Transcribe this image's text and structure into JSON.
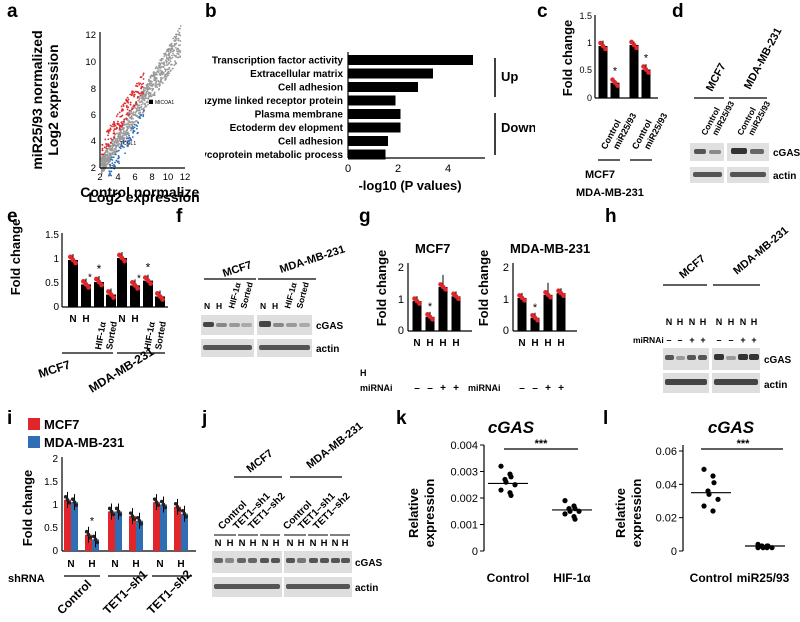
{
  "panel_labels": [
    "a",
    "b",
    "c",
    "d",
    "e",
    "f",
    "g",
    "h",
    "i",
    "j",
    "k",
    "l"
  ],
  "colors": {
    "bar": "#000000",
    "red_dot": "#e0262a",
    "blue": "#2f6db5",
    "gray_dot": "#9a9a9a",
    "blot_band": "#4a4a4a",
    "blot_bg": "#d6d6d6"
  },
  "a": {
    "ylabel_line1": "miR25/93 normalized",
    "ylabel_line2": "Log2 expression",
    "xlabel_line1": "Control normalized",
    "xlabel_line2": "Log2 expression",
    "xticks": [
      "2",
      "4",
      "6",
      "8",
      "10",
      "12"
    ],
    "yticks": [
      "2",
      "4",
      "6",
      "8",
      "10",
      "12"
    ],
    "annotation_1": "MICOA1",
    "annotation_2": "TCOL1"
  },
  "b": {
    "categories": [
      "Transcription factor activity",
      "Extracellular matrix",
      "Cell adhesion",
      "Enzyme linked receptor protein",
      "Plasma membrane",
      "Ectoderm dev elopment",
      "Cell adhesion",
      "Glycoprotein metabolic process"
    ],
    "values": [
      5.0,
      3.4,
      2.8,
      1.9,
      2.1,
      2.1,
      1.6,
      1.5
    ],
    "xticks": [
      "0",
      "2",
      "4"
    ],
    "xlabel": "-log10 (P values)",
    "up_label": "Up",
    "down_label": "Down"
  },
  "c": {
    "ylabel": "Fold change",
    "yticks": [
      "0",
      "0.5",
      "1",
      "1.5"
    ],
    "bar_values": [
      0.95,
      0.28,
      0.97,
      0.52
    ],
    "bar_labels": [
      "Control",
      "miR25/93",
      "Control",
      "miR25/93"
    ],
    "group1": "MCF7",
    "group2": "MDA-MB-231",
    "star": "*"
  },
  "d": {
    "group1": "MCF7",
    "group2": "MDA-MB-231",
    "lanes": [
      "Control",
      "miR25/93",
      "Control",
      "miR25/93"
    ],
    "band1": "cGAS",
    "band2": "actin"
  },
  "e": {
    "ylabel": "Fold change",
    "yticks": [
      "0",
      "0.5",
      "1",
      "1.5"
    ],
    "values": [
      0.98,
      0.47,
      0.52,
      0.26,
      1.02,
      0.45,
      0.55,
      0.22
    ],
    "lane_N": "N",
    "lane_H": "H",
    "hif": "HIF-1α",
    "sorted": "Sorted",
    "group1": "MCF7",
    "group2": "MDA-MB-231",
    "star": "*"
  },
  "f": {
    "group1": "MCF7",
    "group2": "MDA-MB-231",
    "lane_N": "N",
    "lane_H": "H",
    "hif": "HIF-1α",
    "sorted": "Sorted",
    "band1": "cGAS",
    "band2": "actin"
  },
  "g": {
    "ylabel": "Fold change",
    "left_title": "MCF7",
    "right_title": "MDA-MB-231",
    "yticks": [
      "0",
      "1",
      "2"
    ],
    "left_values": [
      0.95,
      0.45,
      1.4,
      1.1
    ],
    "right_values": [
      1.05,
      0.42,
      1.15,
      1.2
    ],
    "lanes": [
      "N",
      "H",
      "H",
      "H"
    ],
    "miRNAi_label": "miRNAi",
    "signs": [
      "–",
      "–",
      "+",
      "+"
    ],
    "h_label": "H",
    "star": "*"
  },
  "h": {
    "group1": "MCF7",
    "group2": "MDA-MB-231",
    "lanes": [
      "N",
      "H",
      "N",
      "H"
    ],
    "miRNAi_label": "miRNAi",
    "signs": [
      "–",
      "–",
      "+",
      "+"
    ],
    "band1": "cGAS",
    "band2": "actin"
  },
  "i": {
    "ylabel": "Fold change",
    "yticks": [
      "0",
      "0.5",
      "1",
      "1.5",
      "2"
    ],
    "legend": [
      "MCF7",
      "MDA-MB-231"
    ],
    "mcf7_values": [
      1.1,
      0.35,
      0.85,
      0.75,
      1.05,
      0.95
    ],
    "mda_values": [
      1.05,
      0.25,
      0.85,
      0.65,
      1.0,
      0.8
    ],
    "lanes": [
      "N",
      "H",
      "N",
      "H",
      "N",
      "H"
    ],
    "shrna_label": "shRNA",
    "groups": [
      "Control",
      "TET1–sh1",
      "TET1–sh2"
    ],
    "star": "*"
  },
  "j": {
    "group1": "MCF7",
    "group2": "MDA-MB-231",
    "lanes": [
      "Control",
      "TET1–sh1",
      "TET1–sh2"
    ],
    "nh": [
      "N",
      "H",
      "N",
      "H",
      "N",
      "H"
    ],
    "band1": "cGAS",
    "band2": "actin"
  },
  "k": {
    "title": "cGAS",
    "ylabel_line1": "Relative",
    "ylabel_line2": "expression",
    "yticks": [
      "0",
      "0.001",
      "0.002",
      "0.003",
      "0.004"
    ],
    "groups": [
      "Control",
      "HIF-1α"
    ],
    "control_points": [
      0.0032,
      0.0029,
      0.0028,
      0.0027,
      0.0026,
      0.0025,
      0.0023,
      0.0022,
      0.0021
    ],
    "hif_points": [
      0.0019,
      0.0017,
      0.0016,
      0.0016,
      0.0015,
      0.0015,
      0.0014,
      0.0013,
      0.0012
    ],
    "medians": [
      0.00255,
      0.00155
    ],
    "sig": "***"
  },
  "l": {
    "title": "cGAS",
    "ylabel_line1": "Relative",
    "ylabel_line2": "expression",
    "yticks": [
      "0",
      "0.02",
      "0.04",
      "0.06"
    ],
    "groups": [
      "Control",
      "miR25/93"
    ],
    "control_points": [
      0.049,
      0.045,
      0.041,
      0.036,
      0.034,
      0.031,
      0.027,
      0.024
    ],
    "mir_points": [
      0.004,
      0.003,
      0.003,
      0.003,
      0.002,
      0.002,
      0.002,
      0.002
    ],
    "medians": [
      0.035,
      0.003
    ],
    "sig": "***"
  }
}
